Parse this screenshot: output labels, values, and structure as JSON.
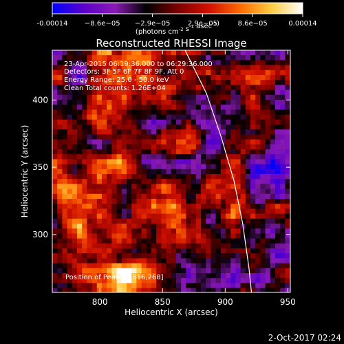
{
  "chart_data": {
    "type": "heatmap",
    "title": "Reconstructed RHESSI Image",
    "xlabel": "Heliocentric X (arcsec)",
    "ylabel": "Heliocentric Y (arcsec)",
    "xlim": [
      762,
      952
    ],
    "ylim": [
      257,
      437
    ],
    "x_ticks": [
      800,
      850,
      900,
      950
    ],
    "y_ticks": [
      300,
      350,
      400
    ],
    "colorbar": {
      "label": "(photons cm^-2 s^-1 asec^-2)",
      "range": [
        -0.00014,
        0.00014
      ],
      "ticks": [
        "-0.00014",
        "−8.6e−05",
        "−2.9e−05",
        "2.9e−05",
        "8.6e−05",
        "0.00014"
      ],
      "colors": [
        "#0000ff",
        "#5a00c8",
        "#8a1ab4",
        "#000000",
        "#7a0000",
        "#d01000",
        "#ff6a00",
        "#ffcc40",
        "#ffffff"
      ]
    },
    "annotations": [
      "23-Apr-2015 06:19:36.000 to 06:29:36.000",
      "Detectors: 3F 5F 6F 7F 8F 9F, Att 0",
      "Energy Range: 25.0 - 50.0 keV",
      "Clean     Total counts: 1.26E+04"
    ],
    "position_note": "Position of Peak = [816,268]",
    "peak": [
      816,
      268
    ],
    "limb_curve": [
      [
        868,
        437
      ],
      [
        885,
        405
      ],
      [
        897,
        372
      ],
      [
        907,
        340
      ],
      [
        914,
        308
      ],
      [
        919,
        275
      ],
      [
        921,
        257
      ]
    ]
  },
  "footer": {
    "date": "2-Oct-2017 02:24"
  }
}
